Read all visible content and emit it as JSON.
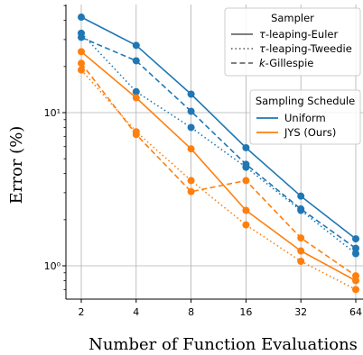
{
  "chart_data": {
    "type": "line",
    "title": "",
    "xlabel": "Number of Function Evaluations",
    "ylabel": "Error (%)",
    "x_scale": "log2",
    "y_scale": "log",
    "x": [
      2,
      4,
      8,
      16,
      32,
      64
    ],
    "x_ticklabels": [
      "2",
      "4",
      "8",
      "16",
      "32",
      "64"
    ],
    "y_ticks": [
      1,
      10
    ],
    "y_ticklabels": [
      "10⁰",
      "10¹"
    ],
    "ylim": [
      0.6,
      50
    ],
    "grid": true,
    "colors": {
      "Uniform": "#1f77b4",
      "JYS (Ours)": "#ff7f0e"
    },
    "legend_sampler": {
      "title": "Sampler",
      "placement": "top-right",
      "entries": [
        {
          "label": "τ-leaping-Euler",
          "linestyle": "solid"
        },
        {
          "label": "τ-leaping-Tweedie",
          "linestyle": "dotted"
        },
        {
          "label": "k-Gillespie",
          "linestyle": "dashed"
        }
      ]
    },
    "legend_schedule": {
      "title": "Sampling Schedule",
      "placement": "right",
      "entries": [
        {
          "label": "Uniform",
          "color": "#1f77b4"
        },
        {
          "label": "JYS (Ours)",
          "color": "#ff7f0e"
        }
      ]
    },
    "series": [
      {
        "schedule": "Uniform",
        "sampler": "τ-leaping-Euler",
        "linestyle": "solid",
        "values": [
          42,
          27.5,
          13.2,
          5.9,
          2.85,
          1.5
        ]
      },
      {
        "schedule": "Uniform",
        "sampler": "τ-leaping-Tweedie",
        "linestyle": "dotted",
        "values": [
          33,
          13.7,
          8.0,
          4.4,
          2.3,
          1.2
        ]
      },
      {
        "schedule": "Uniform",
        "sampler": "k-Gillespie",
        "linestyle": "dashed",
        "values": [
          31,
          21.8,
          10.2,
          4.6,
          2.35,
          1.3
        ]
      },
      {
        "schedule": "JYS (Ours)",
        "sampler": "τ-leaping-Euler",
        "linestyle": "solid",
        "values": [
          25,
          12.5,
          5.8,
          2.3,
          1.25,
          0.8
        ]
      },
      {
        "schedule": "JYS (Ours)",
        "sampler": "τ-leaping-Tweedie",
        "linestyle": "dotted",
        "values": [
          19,
          7.5,
          3.6,
          1.85,
          1.07,
          0.7
        ]
      },
      {
        "schedule": "JYS (Ours)",
        "sampler": "k-Gillespie",
        "linestyle": "dashed",
        "values": [
          21,
          7.2,
          3.05,
          3.6,
          1.52,
          0.86
        ]
      }
    ]
  }
}
